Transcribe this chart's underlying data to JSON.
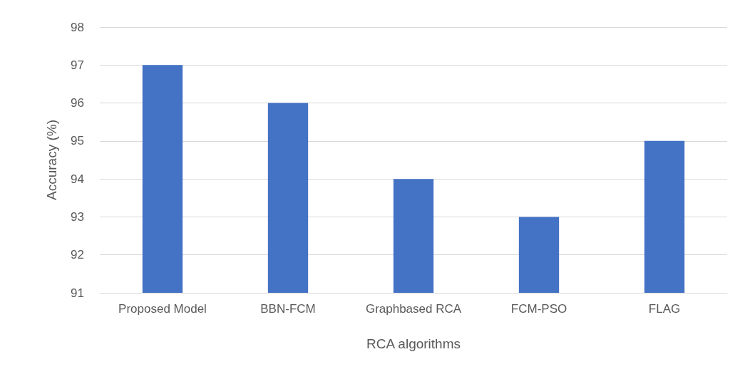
{
  "chart_data": {
    "type": "bar",
    "xlabel": "RCA algorithms",
    "ylabel": "Accuracy (%)",
    "categories": [
      "Proposed Model",
      "BBN-FCM",
      "Graphbased RCA",
      "FCM-PSO",
      "FLAG"
    ],
    "values": [
      97,
      96,
      94,
      93,
      95
    ],
    "color": "#4472c4",
    "ylim": [
      91,
      98
    ],
    "yticks": [
      91,
      92,
      93,
      94,
      95,
      96,
      97,
      98
    ],
    "grid": "y"
  }
}
